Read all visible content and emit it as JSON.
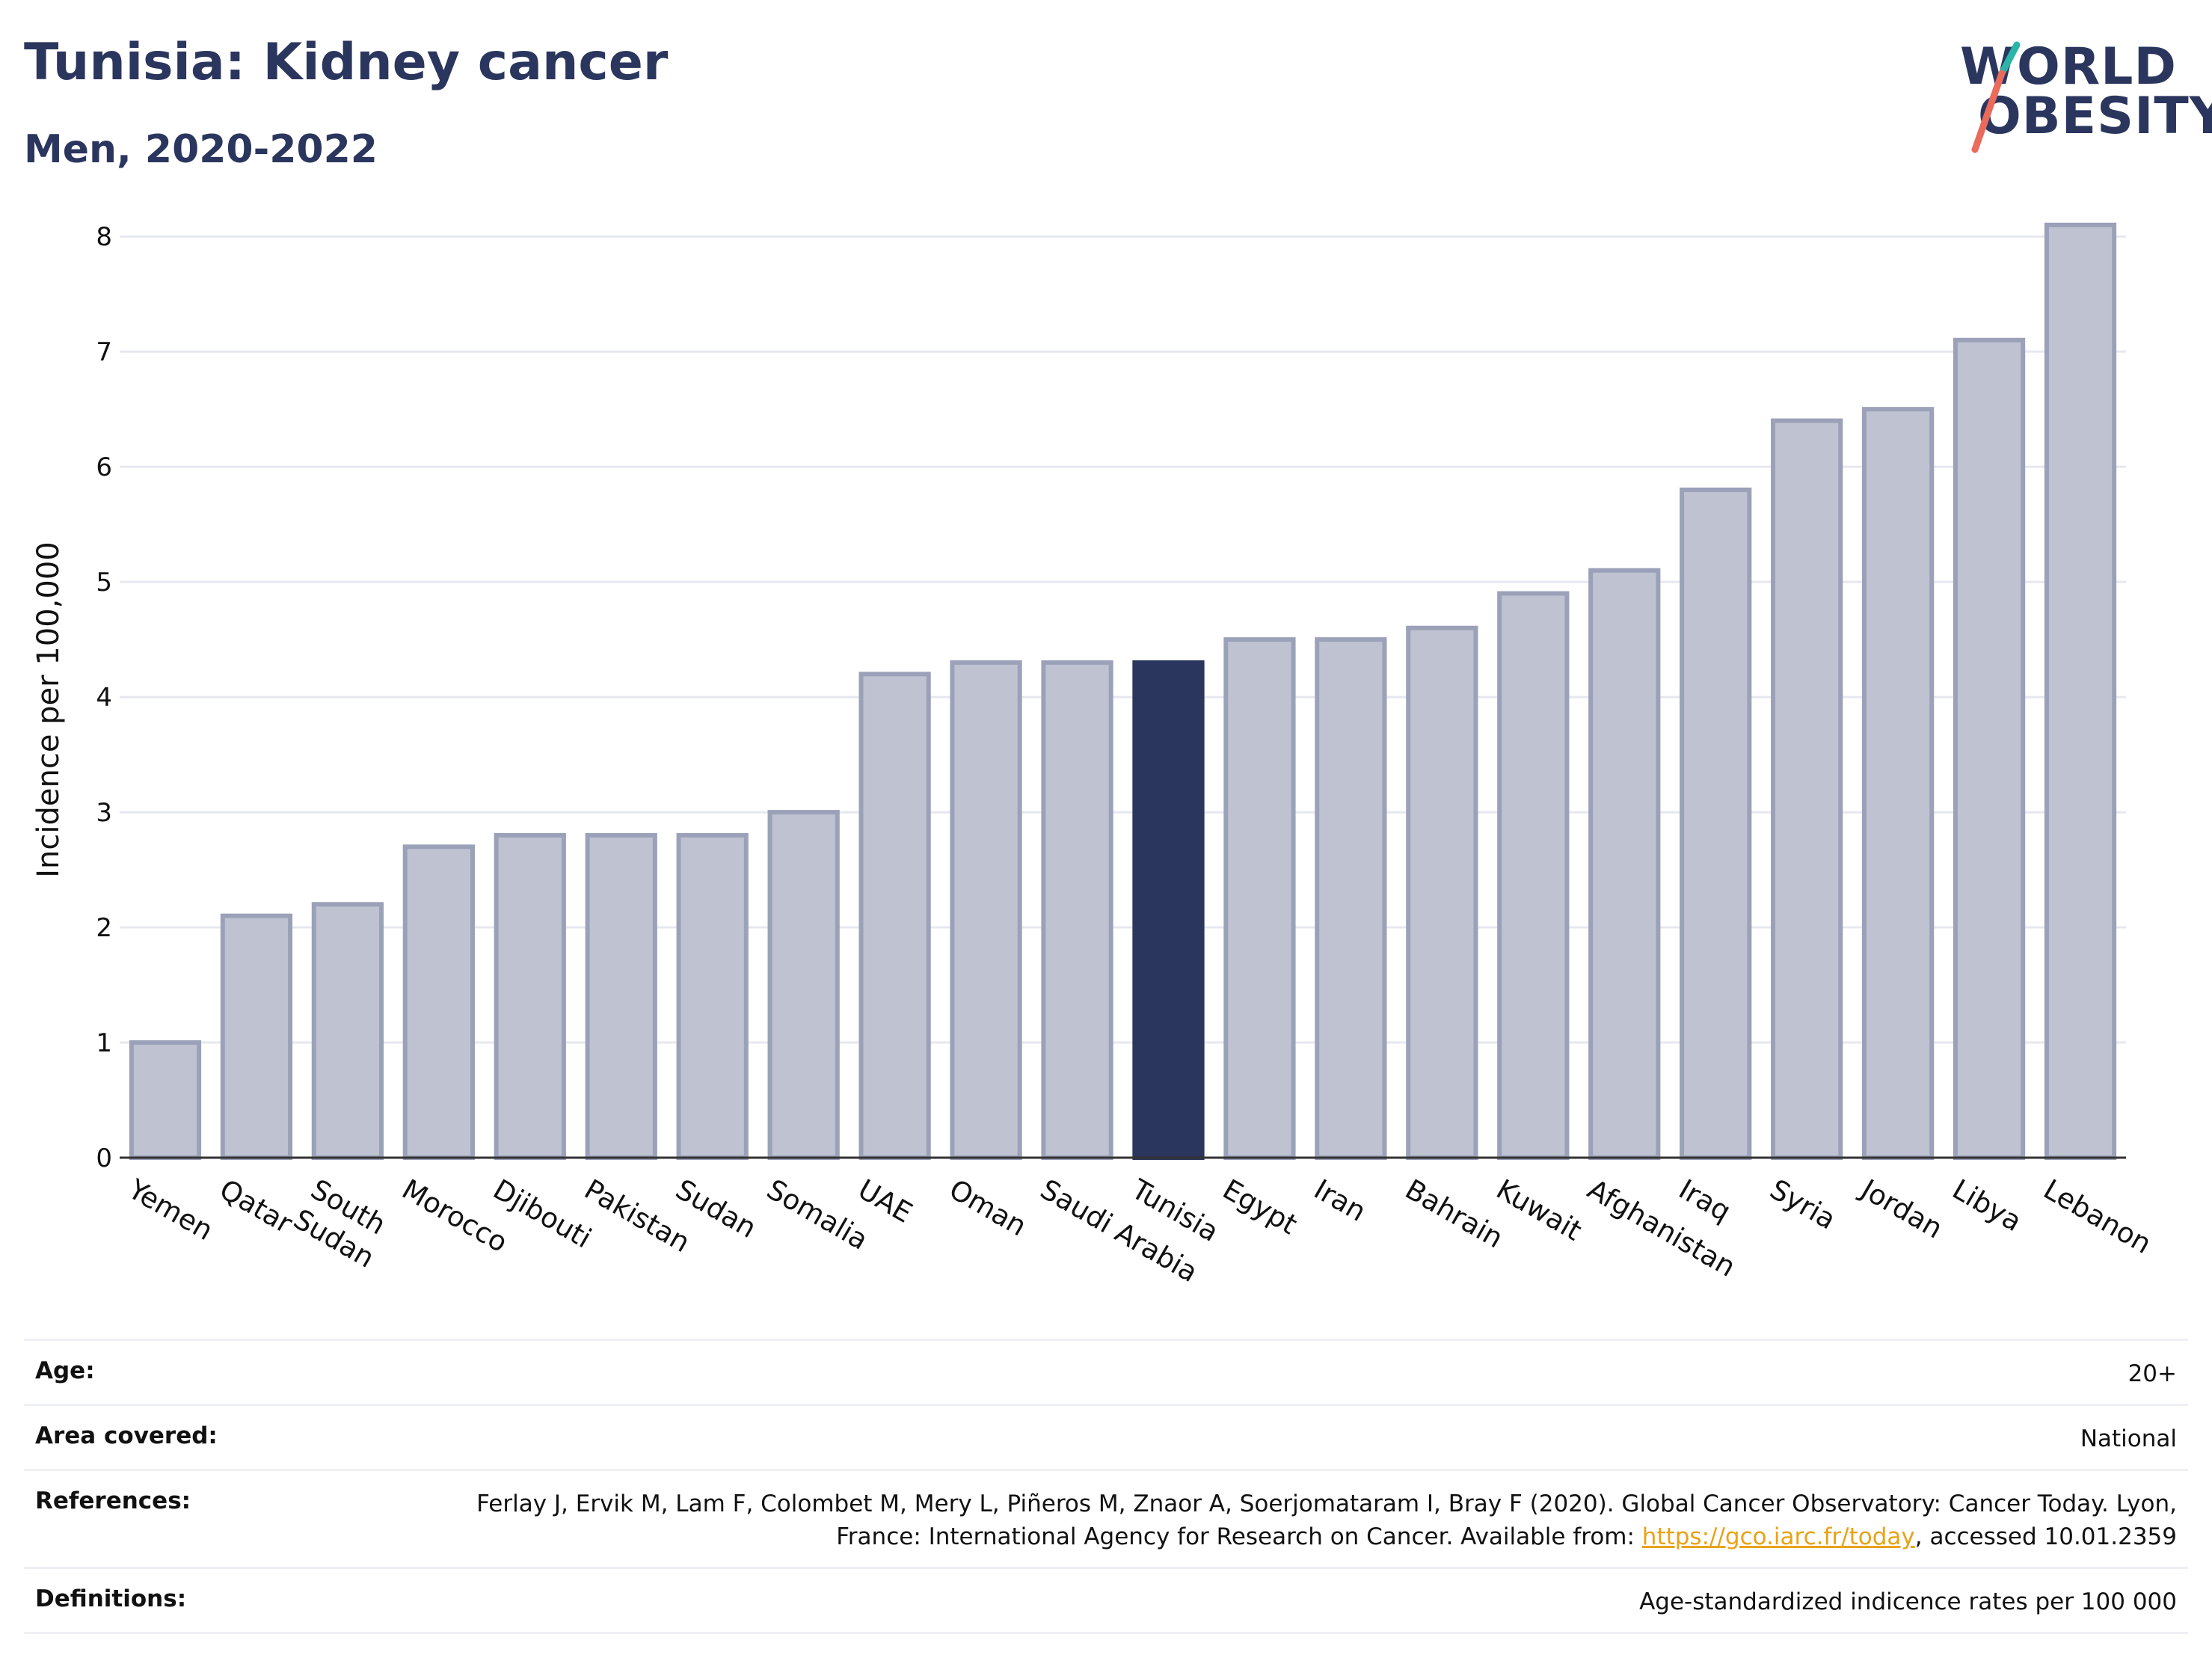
{
  "header": {
    "title": "Tunisia: Kidney cancer",
    "subtitle": "Men, 2020-2022"
  },
  "logo": {
    "line1": "WORLD",
    "line2": "OBESITY",
    "colors": {
      "text": "#2b365e",
      "slash_top": "#2bb5a8",
      "slash_bottom": "#ea6a5c"
    }
  },
  "colors": {
    "highlight": "#2b365e",
    "bar_fill": "#bfc3d1",
    "bar_stroke": "#9ba1b8",
    "gridline": "#e6e8ef",
    "link": "#e8a317"
  },
  "chart_data": {
    "type": "bar",
    "title": "Tunisia: Kidney cancer",
    "subtitle": "Men, 2020-2022",
    "xlabel": "",
    "ylabel": "Incidence per 100,000",
    "ylim": [
      0,
      8.3
    ],
    "yticks": [
      0,
      1,
      2,
      3,
      4,
      5,
      6,
      7,
      8
    ],
    "grid": true,
    "highlight": "Tunisia",
    "categories": [
      "Yemen",
      "Qatar",
      "South Sudan",
      "Morocco",
      "Djibouti",
      "Pakistan",
      "Sudan",
      "Somalia",
      "UAE",
      "Oman",
      "Saudi Arabia",
      "Tunisia",
      "Egypt",
      "Iran",
      "Bahrain",
      "Kuwait",
      "Afghanistan",
      "Iraq",
      "Syria",
      "Jordan",
      "Libya",
      "Lebanon"
    ],
    "values": [
      1.0,
      2.1,
      2.2,
      2.7,
      2.8,
      2.8,
      2.8,
      3.0,
      4.2,
      4.3,
      4.3,
      4.3,
      4.5,
      4.5,
      4.6,
      4.9,
      5.1,
      5.8,
      6.4,
      6.5,
      7.1,
      8.1
    ]
  },
  "info": {
    "age_label": "Age:",
    "age_value": "20+",
    "area_label": "Area covered:",
    "area_value": "National",
    "references_label": "References:",
    "references_text_1": "Ferlay J, Ervik M, Lam F, Colombet M, Mery L, Piñeros M, Znaor A, Soerjomataram I, Bray F (2020). Global Cancer Observatory: Cancer Today. Lyon, France: International Agency for Research on Cancer. Available from: ",
    "references_link": "https://gco.iarc.fr/today",
    "references_text_2": ", accessed 10.01.2359",
    "definitions_label": "Definitions:",
    "definitions_value": "Age-standardized indicence rates per 100 000"
  }
}
